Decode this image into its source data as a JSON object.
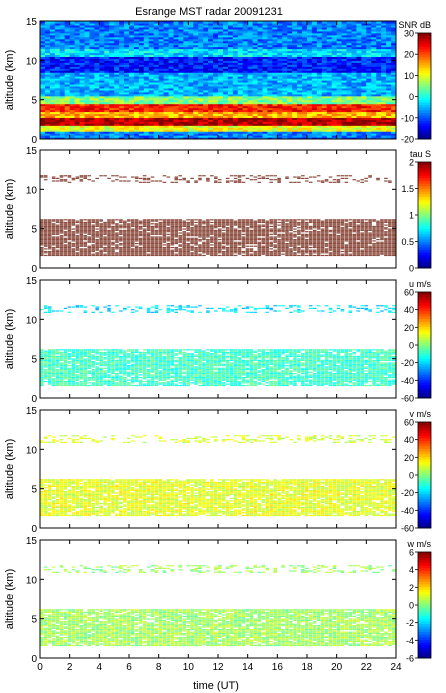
{
  "chart_data": [
    {
      "type": "heatmap",
      "title": "Esrange MST radar 20091231",
      "xlabel": "",
      "ylabel": "altitude (km)",
      "xlim": [
        0,
        24
      ],
      "ylim": [
        0,
        15
      ],
      "xticks": [
        0,
        2,
        4,
        6,
        8,
        10,
        12,
        14,
        16,
        18,
        20,
        22,
        24
      ],
      "yticks": [
        0,
        5,
        10,
        15
      ],
      "colorbar": {
        "label": "SNR dB",
        "min": -20,
        "max": 30,
        "ticks": [
          -20,
          -10,
          0,
          10,
          20,
          30
        ]
      },
      "colorscale": "jet",
      "fill": "full",
      "layers": [
        {
          "name": "",
          "alt": [
            0.3,
            1.0
          ],
          "level": 0.25
        },
        {
          "name": "",
          "alt": [
            1.0,
            1.8
          ],
          "level": 0.6
        },
        {
          "name": "",
          "alt": [
            1.8,
            2.8
          ],
          "level": 0.95
        },
        {
          "name": "",
          "alt": [
            2.8,
            3.6
          ],
          "level": 0.7
        },
        {
          "name": "",
          "alt": [
            3.6,
            4.6
          ],
          "level": 0.85
        },
        {
          "name": "",
          "alt": [
            4.6,
            5.4
          ],
          "level": 0.5
        },
        {
          "name": "",
          "alt": [
            5.4,
            8.5
          ],
          "level": 0.3
        },
        {
          "name": "",
          "alt": [
            8.5,
            10.5
          ],
          "level": 0.15
        },
        {
          "name": "",
          "alt": [
            10.5,
            11.6
          ],
          "level": 0.35
        },
        {
          "name": "",
          "alt": [
            11.6,
            15.0
          ],
          "level": 0.25
        }
      ]
    },
    {
      "type": "heatmap",
      "xlabel": "",
      "ylabel": "altitude (km)",
      "xlim": [
        0,
        24
      ],
      "ylim": [
        0,
        15
      ],
      "xticks": [
        0,
        2,
        4,
        6,
        8,
        10,
        12,
        14,
        16,
        18,
        20,
        22,
        24
      ],
      "yticks": [
        0,
        5,
        10,
        15
      ],
      "colorbar": {
        "label": "tau S",
        "min": 0,
        "max": 2,
        "ticks": [
          0,
          0.5,
          1,
          1.5,
          2
        ]
      },
      "colorscale": "jet",
      "fill": "masked",
      "solid_color": "#8b4a3c",
      "layers": [
        {
          "alt": [
            1.5,
            6.2
          ],
          "density": 0.9
        },
        {
          "alt": [
            10.8,
            11.8
          ],
          "density": 0.35
        }
      ]
    },
    {
      "type": "heatmap",
      "xlabel": "",
      "ylabel": "altitude (km)",
      "xlim": [
        0,
        24
      ],
      "ylim": [
        0,
        15
      ],
      "xticks": [
        0,
        2,
        4,
        6,
        8,
        10,
        12,
        14,
        16,
        18,
        20,
        22,
        24
      ],
      "yticks": [
        0,
        5,
        10,
        15
      ],
      "colorbar": {
        "label": "u m/s",
        "min": -60,
        "max": 60,
        "ticks": [
          -60,
          -40,
          -20,
          0,
          20,
          40,
          60
        ]
      },
      "colorscale": "jet",
      "fill": "masked",
      "layers": [
        {
          "alt": [
            1.5,
            6.2
          ],
          "density": 0.9,
          "value": -8
        },
        {
          "alt": [
            10.8,
            11.8
          ],
          "density": 0.35,
          "value": -18
        }
      ]
    },
    {
      "type": "heatmap",
      "xlabel": "",
      "ylabel": "altitude (km)",
      "xlim": [
        0,
        24
      ],
      "ylim": [
        0,
        15
      ],
      "xticks": [
        0,
        2,
        4,
        6,
        8,
        10,
        12,
        14,
        16,
        18,
        20,
        22,
        24
      ],
      "yticks": [
        0,
        5,
        10,
        15
      ],
      "colorbar": {
        "label": "v m/s",
        "min": -60,
        "max": 60,
        "ticks": [
          -60,
          -40,
          -20,
          0,
          20,
          40,
          60
        ]
      },
      "colorscale": "jet",
      "fill": "masked",
      "layers": [
        {
          "alt": [
            1.5,
            6.2
          ],
          "density": 0.9,
          "value": 12
        },
        {
          "alt": [
            10.8,
            11.8
          ],
          "density": 0.35,
          "value": 10
        }
      ]
    },
    {
      "type": "heatmap",
      "xlabel": "time (UT)",
      "ylabel": "altitude (km)",
      "xlim": [
        0,
        24
      ],
      "ylim": [
        0,
        15
      ],
      "xticks": [
        0,
        2,
        4,
        6,
        8,
        10,
        12,
        14,
        16,
        18,
        20,
        22,
        24
      ],
      "yticks": [
        0,
        5,
        10,
        15
      ],
      "colorbar": {
        "label": "w m/s",
        "min": -6,
        "max": 6,
        "ticks": [
          -6,
          -4,
          -2,
          0,
          2,
          4,
          6
        ]
      },
      "colorscale": "jet",
      "fill": "masked",
      "layers": [
        {
          "alt": [
            1.5,
            6.2
          ],
          "density": 0.9,
          "value": 0.4
        },
        {
          "alt": [
            10.8,
            11.8
          ],
          "density": 0.35,
          "value": 0.3
        }
      ]
    }
  ]
}
